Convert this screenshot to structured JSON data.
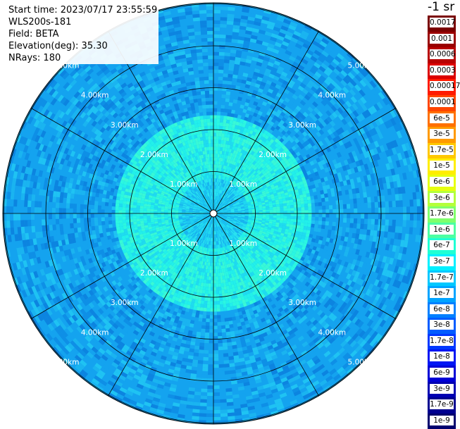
{
  "info": {
    "start_time": "Start time: 2023/07/17 23:55:59",
    "instrument": "WLS200s-181",
    "field": "Field: BETA",
    "elevation": "Elevation(deg): 35.30",
    "nrays": "NRays: 180"
  },
  "colorbar": {
    "unit": "-1 sr",
    "items": [
      {
        "label": "0.0017",
        "color": "#7a0000"
      },
      {
        "label": "0.001",
        "color": "#9a0000"
      },
      {
        "label": "0.0006",
        "color": "#b80000"
      },
      {
        "label": "0.0003",
        "color": "#dc0000"
      },
      {
        "label": "0.00017",
        "color": "#ff1a00"
      },
      {
        "label": "0.0001",
        "color": "#ff4500"
      },
      {
        "label": "6e-5",
        "color": "#ff7000"
      },
      {
        "label": "3e-5",
        "color": "#ff9a00"
      },
      {
        "label": "1.7e-5",
        "color": "#ffc800"
      },
      {
        "label": "1e-5",
        "color": "#ffee00"
      },
      {
        "label": "6e-6",
        "color": "#e6ff10"
      },
      {
        "label": "3e-6",
        "color": "#b4ff3a"
      },
      {
        "label": "1.7e-6",
        "color": "#80ff6c"
      },
      {
        "label": "1e-6",
        "color": "#4cffa2"
      },
      {
        "label": "6e-7",
        "color": "#20ffd4"
      },
      {
        "label": "3e-7",
        "color": "#00f0ff"
      },
      {
        "label": "1.7e-7",
        "color": "#00c8ff"
      },
      {
        "label": "1e-7",
        "color": "#00a4ff"
      },
      {
        "label": "6e-8",
        "color": "#0080ff"
      },
      {
        "label": "3e-8",
        "color": "#005cff"
      },
      {
        "label": "1.7e-8",
        "color": "#0038ff"
      },
      {
        "label": "1e-8",
        "color": "#0016f4"
      },
      {
        "label": "6e-9",
        "color": "#0000d6"
      },
      {
        "label": "3e-9",
        "color": "#0000b2"
      },
      {
        "label": "1.7e-9",
        "color": "#000090"
      },
      {
        "label": "1e-9",
        "color": "#00006e"
      }
    ]
  },
  "range_rings": [
    "1.00km",
    "2.00km",
    "3.00km",
    "4.00km",
    "5.00km"
  ],
  "colors": {
    "near_field": "#1fd9f2",
    "mid_field": "#22f0ea",
    "outer_field": "#14a3ef",
    "grid_lines": "#000000"
  }
}
